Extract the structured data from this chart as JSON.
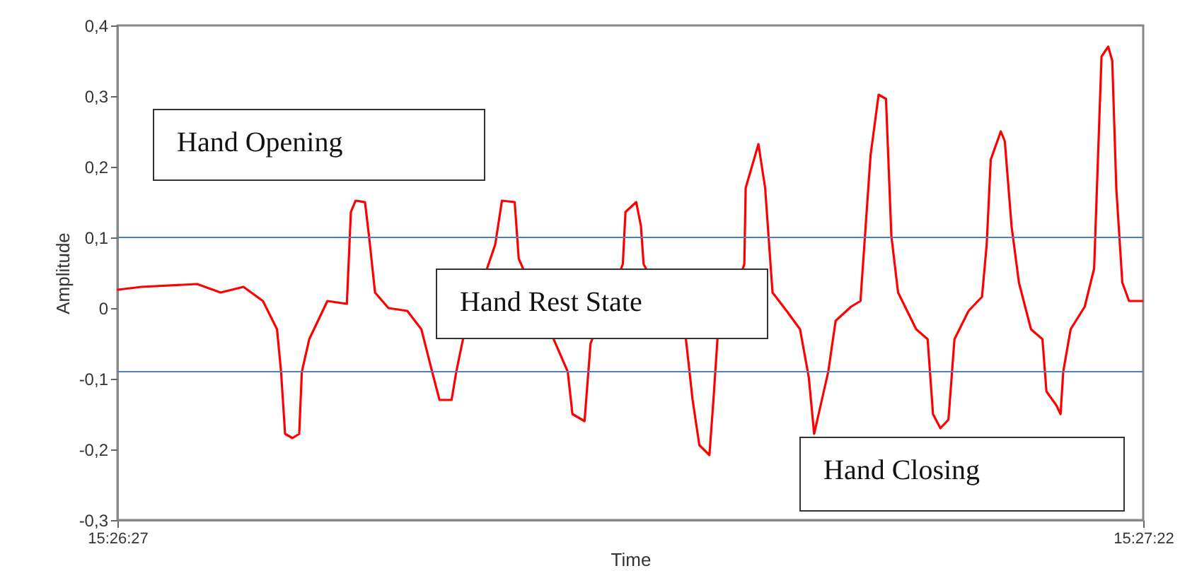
{
  "chart_data": {
    "type": "line",
    "xlabel": "Time",
    "ylabel": "Amplitude",
    "color": "#ff0000",
    "x": [
      15.44084,
      15.44119,
      15.44202,
      15.44237,
      15.44271,
      15.443,
      15.44321,
      15.44327,
      15.44333,
      15.44344,
      15.44354,
      15.44358,
      15.44369,
      15.44396,
      15.44425,
      15.44431,
      15.44438,
      15.44452,
      15.44458,
      15.44467,
      15.44487,
      15.44515,
      15.44536,
      15.44552,
      15.44563,
      15.44581,
      15.44588,
      15.44598,
      15.44646,
      15.44656,
      15.44675,
      15.44681,
      15.44754,
      15.44761,
      15.44779,
      15.44788,
      15.44836,
      15.4484,
      15.44856,
      15.44863,
      15.44867,
      15.4493,
      15.4494,
      15.4495,
      15.44965,
      15.44971,
      15.44977,
      15.45017,
      15.45019,
      15.45038,
      15.45048,
      15.45059,
      15.4508,
      15.451,
      15.45113,
      15.45121,
      15.45142,
      15.45153,
      15.45176,
      15.4519,
      15.45205,
      15.45217,
      15.45228,
      15.45236,
      15.45246,
      15.45273,
      15.4529,
      15.45298,
      15.45309,
      15.45321,
      15.4533,
      15.45351,
      15.45371,
      15.45378,
      15.45384,
      15.45399,
      15.45405,
      15.45415,
      15.45426,
      15.45444,
      15.45461,
      15.45467,
      15.45482,
      15.45488,
      15.45492,
      15.45503,
      15.45524,
      15.45538,
      15.45549,
      15.45559,
      15.45565,
      15.45571,
      15.4558,
      15.4559,
      15.4561
    ],
    "values": [
      0.026,
      0.03,
      0.034,
      0.022,
      0.03,
      0.01,
      -0.03,
      -0.09,
      -0.178,
      -0.184,
      -0.178,
      -0.09,
      -0.044,
      0.01,
      0.006,
      0.136,
      0.152,
      0.15,
      0.102,
      0.022,
      0,
      -0.004,
      -0.03,
      -0.09,
      -0.13,
      -0.13,
      -0.09,
      -0.044,
      0.09,
      0.152,
      0.15,
      0.07,
      -0.09,
      -0.15,
      -0.16,
      -0.05,
      0.062,
      0.136,
      0.15,
      0.116,
      0.062,
      -0.044,
      -0.13,
      -0.194,
      -0.208,
      -0.13,
      -0.044,
      0.062,
      0.17,
      0.232,
      0.17,
      0.022,
      -0.004,
      -0.03,
      -0.098,
      -0.178,
      -0.09,
      -0.018,
      0.002,
      0.01,
      0.216,
      0.302,
      0.296,
      0.102,
      0.022,
      -0.03,
      -0.044,
      -0.15,
      -0.17,
      -0.158,
      -0.044,
      -0.004,
      0.016,
      0.09,
      0.21,
      0.25,
      0.236,
      0.116,
      0.036,
      -0.03,
      -0.044,
      -0.118,
      -0.138,
      -0.15,
      -0.09,
      -0.03,
      0.002,
      0.056,
      0.356,
      0.37,
      0.35,
      0.17,
      0.036,
      0.01,
      0.01
    ],
    "xlim": [
      15.440833,
      15.456111
    ],
    "xticks": [
      {
        "value": 15.440833,
        "label": "15:26:27"
      },
      {
        "value": 15.456111,
        "label": "15:27:22"
      }
    ],
    "ylim": [
      -0.3,
      0.4
    ],
    "yticks": [
      {
        "value": -0.3,
        "label": "-0,3"
      },
      {
        "value": -0.2,
        "label": "-0,2"
      },
      {
        "value": -0.1,
        "label": "-0,1"
      },
      0,
      {
        "value": 0.1,
        "label": "0,1"
      },
      {
        "value": 0.2,
        "label": "0,2"
      },
      {
        "value": 0.3,
        "label": "0,3"
      },
      {
        "value": 0.4,
        "label": "0,4"
      }
    ],
    "grid": false,
    "ref_lines": [
      {
        "axis": "y",
        "value": 0.1,
        "color": "#4a7fd4"
      },
      {
        "axis": "y",
        "value": -0.09,
        "color": "#4a7fd4"
      }
    ],
    "annotations": [
      "Hand Opening",
      "Hand Rest State",
      "Hand Closing"
    ]
  }
}
